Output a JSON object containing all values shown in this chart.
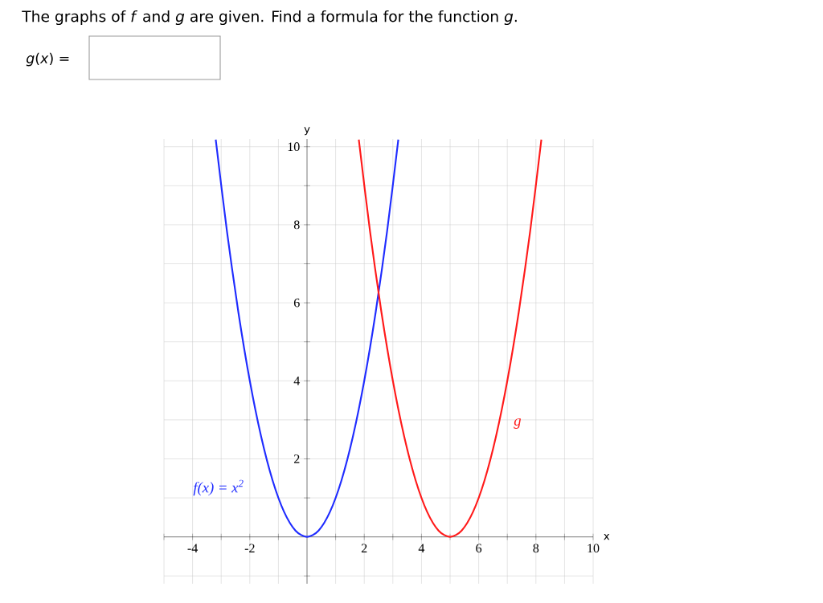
{
  "chart_data": {
    "type": "line",
    "title": "The graphs of *f* and *g* are given. Find a formula for the function *g*.",
    "annotations": [
      "*g*(*x*) ="
    ],
    "xlabel": "x",
    "ylabel": "y",
    "xlim": [
      -5,
      10
    ],
    "ylim": [
      -1.2,
      10.2
    ],
    "xticks": [
      {
        "value": -5,
        "label": null
      },
      -4,
      {
        "value": -3,
        "label": null
      },
      -2,
      {
        "value": -1,
        "label": null
      },
      {
        "value": 0,
        "label": null
      },
      {
        "value": 1,
        "label": null
      },
      2,
      {
        "value": 3,
        "label": null
      },
      4,
      {
        "value": 5,
        "label": null
      },
      6,
      {
        "value": 7,
        "label": null
      },
      8,
      {
        "value": 9,
        "label": null
      },
      10
    ],
    "yticks": [
      {
        "value": -1,
        "label": null
      },
      {
        "value": 0,
        "label": null
      },
      {
        "value": 1,
        "label": null
      },
      2,
      {
        "value": 3,
        "label": null
      },
      4,
      {
        "value": 5,
        "label": null
      },
      6,
      {
        "value": 7,
        "label": null
      },
      8,
      {
        "value": 9,
        "label": null
      },
      10
    ],
    "grid": true,
    "marker": "none",
    "series": [
      {
        "name": "f(x) = x$^{2}$",
        "color": "#1f2cff",
        "x": [
          -3.19,
          -2.8,
          -2.4,
          -2,
          -1.6,
          -1.2,
          -0.8,
          -0.4,
          0,
          0.4,
          0.8,
          1.2,
          1.6,
          2,
          2.4,
          2.8,
          3.19
        ],
        "values": [
          10.18,
          7.84,
          5.76,
          4,
          2.56,
          1.44,
          0.64,
          0.16,
          0,
          0.16,
          0.64,
          1.44,
          2.56,
          4,
          5.76,
          7.84,
          10.18
        ]
      },
      {
        "name": "g",
        "color": "#ff1a1a",
        "x": [
          1.81,
          2.2,
          2.6,
          3,
          3.4,
          3.8,
          4.2,
          4.6,
          5,
          5.4,
          5.8,
          6.2,
          6.6,
          7,
          7.4,
          7.8,
          8.19
        ],
        "values": [
          10.18,
          7.84,
          5.76,
          4,
          2.56,
          1.44,
          0.64,
          0.16,
          0,
          0.16,
          0.64,
          1.44,
          2.56,
          4,
          5.76,
          7.84,
          10.18
        ]
      }
    ]
  }
}
